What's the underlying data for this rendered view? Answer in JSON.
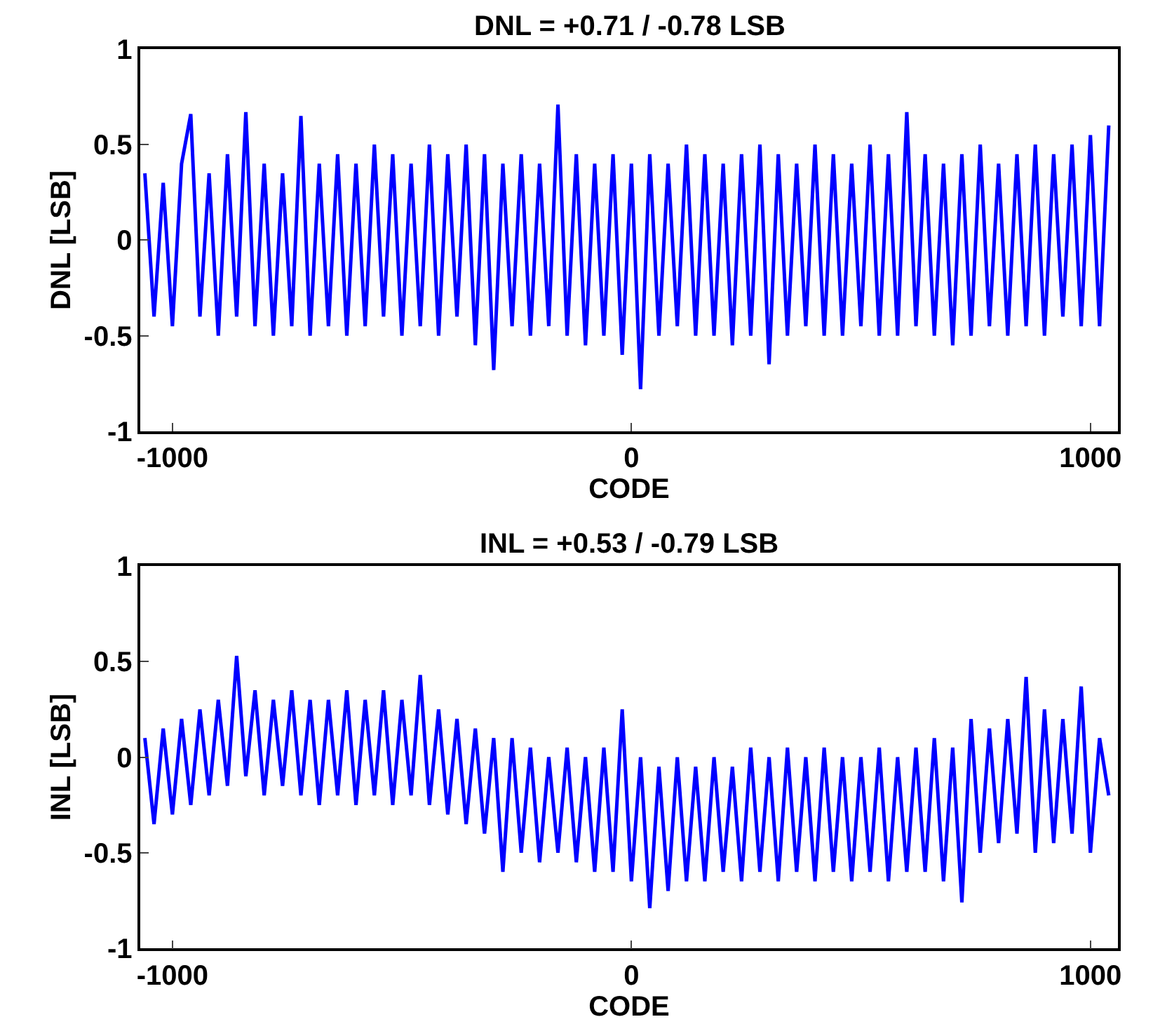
{
  "chart_data": [
    {
      "type": "line",
      "title": "DNL = +0.71 / -0.78 LSB",
      "xlabel": "CODE",
      "ylabel": "DNL [LSB]",
      "xlim": [
        -1070,
        1060
      ],
      "xticks": [
        -1000,
        0,
        1000
      ],
      "ylim": [
        -1,
        1
      ],
      "yticks": [
        -1,
        -0.5,
        0,
        0.5,
        1
      ],
      "marker": "none",
      "line_style": "solid",
      "series": [
        {
          "color": "#0000ff",
          "x": [
            -1060,
            -1040,
            -1020,
            -1000,
            -980,
            -960,
            -940,
            -920,
            -900,
            -880,
            -860,
            -840,
            -820,
            -800,
            -780,
            -760,
            -740,
            -720,
            -700,
            -680,
            -660,
            -640,
            -620,
            -600,
            -580,
            -560,
            -540,
            -520,
            -500,
            -480,
            -460,
            -440,
            -420,
            -400,
            -380,
            -360,
            -340,
            -320,
            -300,
            -280,
            -260,
            -240,
            -220,
            -200,
            -180,
            -160,
            -140,
            -120,
            -100,
            -80,
            -60,
            -40,
            -20,
            0,
            20,
            40,
            60,
            80,
            100,
            120,
            140,
            160,
            180,
            200,
            220,
            240,
            260,
            280,
            300,
            320,
            340,
            360,
            380,
            400,
            420,
            440,
            460,
            480,
            500,
            520,
            540,
            560,
            580,
            600,
            620,
            640,
            660,
            680,
            700,
            720,
            740,
            760,
            780,
            800,
            820,
            840,
            860,
            880,
            900,
            920,
            940,
            960,
            980,
            1000,
            1020,
            1040
          ],
          "values": [
            0.35,
            -0.4,
            0.3,
            -0.45,
            0.4,
            0.66,
            -0.4,
            0.35,
            -0.5,
            0.45,
            -0.4,
            0.67,
            -0.45,
            0.4,
            -0.5,
            0.35,
            -0.45,
            0.65,
            -0.5,
            0.4,
            -0.45,
            0.45,
            -0.5,
            0.4,
            -0.45,
            0.5,
            -0.4,
            0.45,
            -0.5,
            0.4,
            -0.45,
            0.5,
            -0.5,
            0.45,
            -0.4,
            0.5,
            -0.55,
            0.45,
            -0.68,
            0.4,
            -0.45,
            0.45,
            -0.5,
            0.4,
            -0.45,
            0.71,
            -0.5,
            0.45,
            -0.55,
            0.4,
            -0.5,
            0.45,
            -0.6,
            0.4,
            -0.78,
            0.45,
            -0.5,
            0.4,
            -0.45,
            0.5,
            -0.5,
            0.45,
            -0.5,
            0.4,
            -0.55,
            0.45,
            -0.5,
            0.5,
            -0.65,
            0.45,
            -0.5,
            0.4,
            -0.45,
            0.5,
            -0.5,
            0.45,
            -0.5,
            0.4,
            -0.45,
            0.5,
            -0.5,
            0.45,
            -0.5,
            0.67,
            -0.45,
            0.45,
            -0.5,
            0.4,
            -0.55,
            0.45,
            -0.5,
            0.5,
            -0.45,
            0.4,
            -0.5,
            0.45,
            -0.45,
            0.5,
            -0.5,
            0.45,
            -0.4,
            0.5,
            -0.45,
            0.55,
            -0.45,
            0.6
          ]
        }
      ]
    },
    {
      "type": "line",
      "title": "INL = +0.53 / -0.79 LSB",
      "xlabel": "CODE",
      "ylabel": "INL [LSB]",
      "xlim": [
        -1070,
        1060
      ],
      "xticks": [
        -1000,
        0,
        1000
      ],
      "ylim": [
        -1,
        1
      ],
      "yticks": [
        -1,
        -0.5,
        0,
        0.5,
        1
      ],
      "marker": "none",
      "line_style": "solid",
      "series": [
        {
          "color": "#0000ff",
          "x": [
            -1060,
            -1040,
            -1020,
            -1000,
            -980,
            -960,
            -940,
            -920,
            -900,
            -880,
            -860,
            -840,
            -820,
            -800,
            -780,
            -760,
            -740,
            -720,
            -700,
            -680,
            -660,
            -640,
            -620,
            -600,
            -580,
            -560,
            -540,
            -520,
            -500,
            -480,
            -460,
            -440,
            -420,
            -400,
            -380,
            -360,
            -340,
            -320,
            -300,
            -280,
            -260,
            -240,
            -220,
            -200,
            -180,
            -160,
            -140,
            -120,
            -100,
            -80,
            -60,
            -40,
            -20,
            0,
            20,
            40,
            60,
            80,
            100,
            120,
            140,
            160,
            180,
            200,
            220,
            240,
            260,
            280,
            300,
            320,
            340,
            360,
            380,
            400,
            420,
            440,
            460,
            480,
            500,
            520,
            540,
            560,
            580,
            600,
            620,
            640,
            660,
            680,
            700,
            720,
            740,
            760,
            780,
            800,
            820,
            840,
            860,
            880,
            900,
            920,
            940,
            960,
            980,
            1000,
            1020,
            1040
          ],
          "values": [
            0.1,
            -0.35,
            0.15,
            -0.3,
            0.2,
            -0.25,
            0.25,
            -0.2,
            0.3,
            -0.15,
            0.53,
            -0.1,
            0.35,
            -0.2,
            0.3,
            -0.15,
            0.35,
            -0.2,
            0.3,
            -0.25,
            0.3,
            -0.2,
            0.35,
            -0.25,
            0.3,
            -0.2,
            0.35,
            -0.25,
            0.3,
            -0.2,
            0.43,
            -0.25,
            0.25,
            -0.3,
            0.2,
            -0.35,
            0.15,
            -0.4,
            0.1,
            -0.6,
            0.1,
            -0.5,
            0.05,
            -0.55,
            0.0,
            -0.5,
            0.05,
            -0.55,
            0.0,
            -0.6,
            0.05,
            -0.6,
            0.25,
            -0.65,
            0.0,
            -0.79,
            -0.05,
            -0.7,
            0.0,
            -0.65,
            -0.05,
            -0.65,
            0.0,
            -0.6,
            -0.05,
            -0.65,
            0.05,
            -0.6,
            0.0,
            -0.65,
            0.05,
            -0.6,
            0.0,
            -0.65,
            0.05,
            -0.6,
            0.0,
            -0.65,
            0.0,
            -0.6,
            0.05,
            -0.65,
            0.0,
            -0.6,
            0.05,
            -0.6,
            0.1,
            -0.65,
            0.05,
            -0.76,
            0.2,
            -0.5,
            0.15,
            -0.45,
            0.2,
            -0.4,
            0.42,
            -0.5,
            0.25,
            -0.45,
            0.2,
            -0.4,
            0.37,
            -0.5,
            0.1,
            -0.2
          ]
        }
      ]
    }
  ]
}
